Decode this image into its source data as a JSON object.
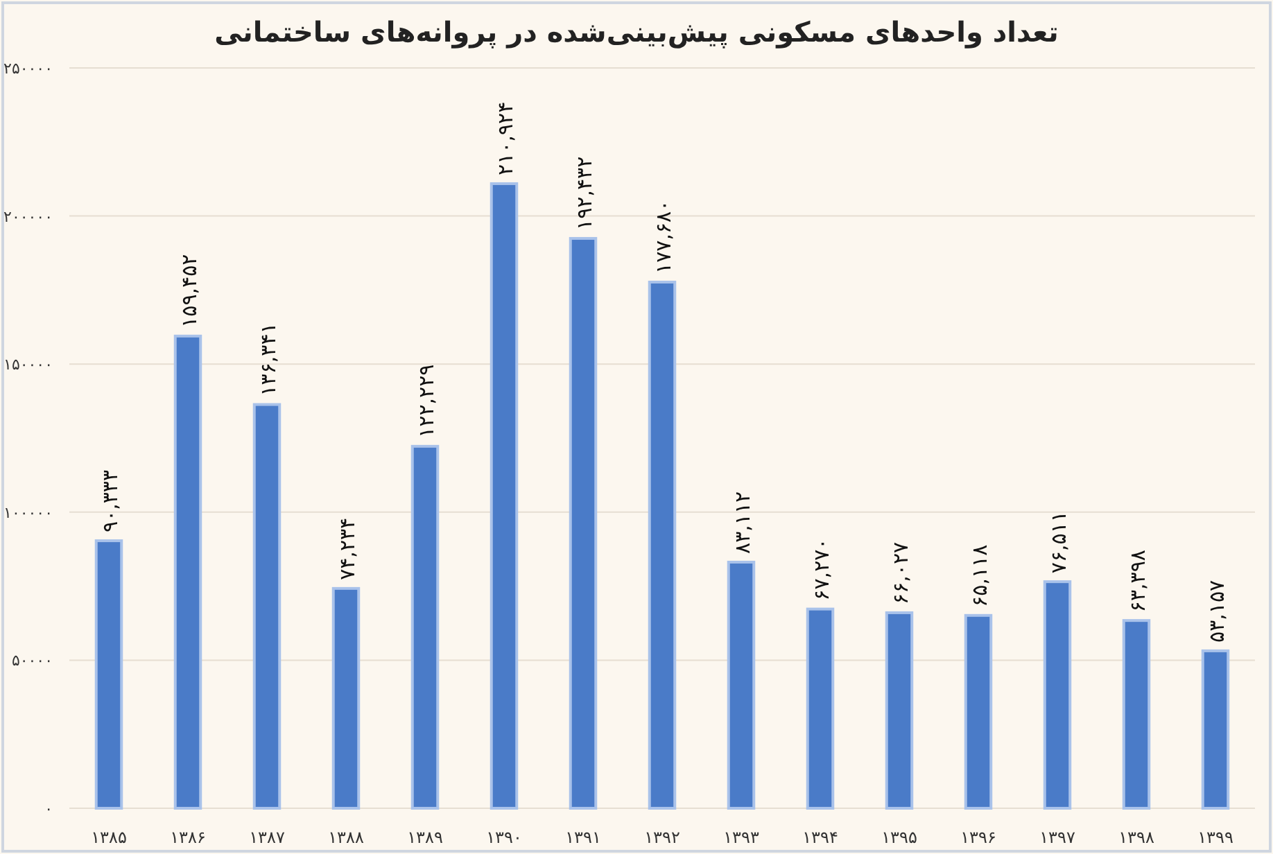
{
  "chart_data": {
    "type": "bar",
    "title": "تعداد واحدهای مسکونی پیش‌بینی‌شده در پروانه‌های ساختمانی",
    "categories": [
      "۱۳۸۵",
      "۱۳۸۶",
      "۱۳۸۷",
      "۱۳۸۸",
      "۱۳۸۹",
      "۱۳۹۰",
      "۱۳۹۱",
      "۱۳۹۲",
      "۱۳۹۳",
      "۱۳۹۴",
      "۱۳۹۵",
      "۱۳۹۶",
      "۱۳۹۷",
      "۱۳۹۸",
      "۱۳۹۹"
    ],
    "values": [
      90333,
      159452,
      136341,
      74234,
      122229,
      210924,
      192432,
      177680,
      83112,
      67270,
      66027,
      65118,
      76511,
      63398,
      53157
    ],
    "value_labels": [
      "۹۰,۳۳۳",
      "۱۵۹,۴۵۲",
      "۱۳۶,۳۴۱",
      "۷۴,۲۳۴",
      "۱۲۲,۲۲۹",
      "۲۱۰,۹۲۴",
      "۱۹۲,۴۳۲",
      "۱۷۷,۶۸۰",
      "۸۳,۱۱۲",
      "۶۷,۲۷۰",
      "۶۶,۰۲۷",
      "۶۵,۱۱۸",
      "۷۶,۵۱۱",
      "۶۳,۳۹۸",
      "۵۳,۱۵۷"
    ],
    "color": "#4a7bc8",
    "ylim": [
      0,
      250000
    ],
    "yticks": [
      {
        "value": 0,
        "label": "۰"
      },
      {
        "value": 50000,
        "label": "۵۰۰۰۰"
      },
      {
        "value": 100000,
        "label": "۱۰۰۰۰۰"
      },
      {
        "value": 150000,
        "label": "۱۵۰۰۰۰"
      },
      {
        "value": 200000,
        "label": "۲۰۰۰۰۰"
      },
      {
        "value": 250000,
        "label": "۲۵۰۰۰۰"
      }
    ],
    "grid": "y"
  }
}
